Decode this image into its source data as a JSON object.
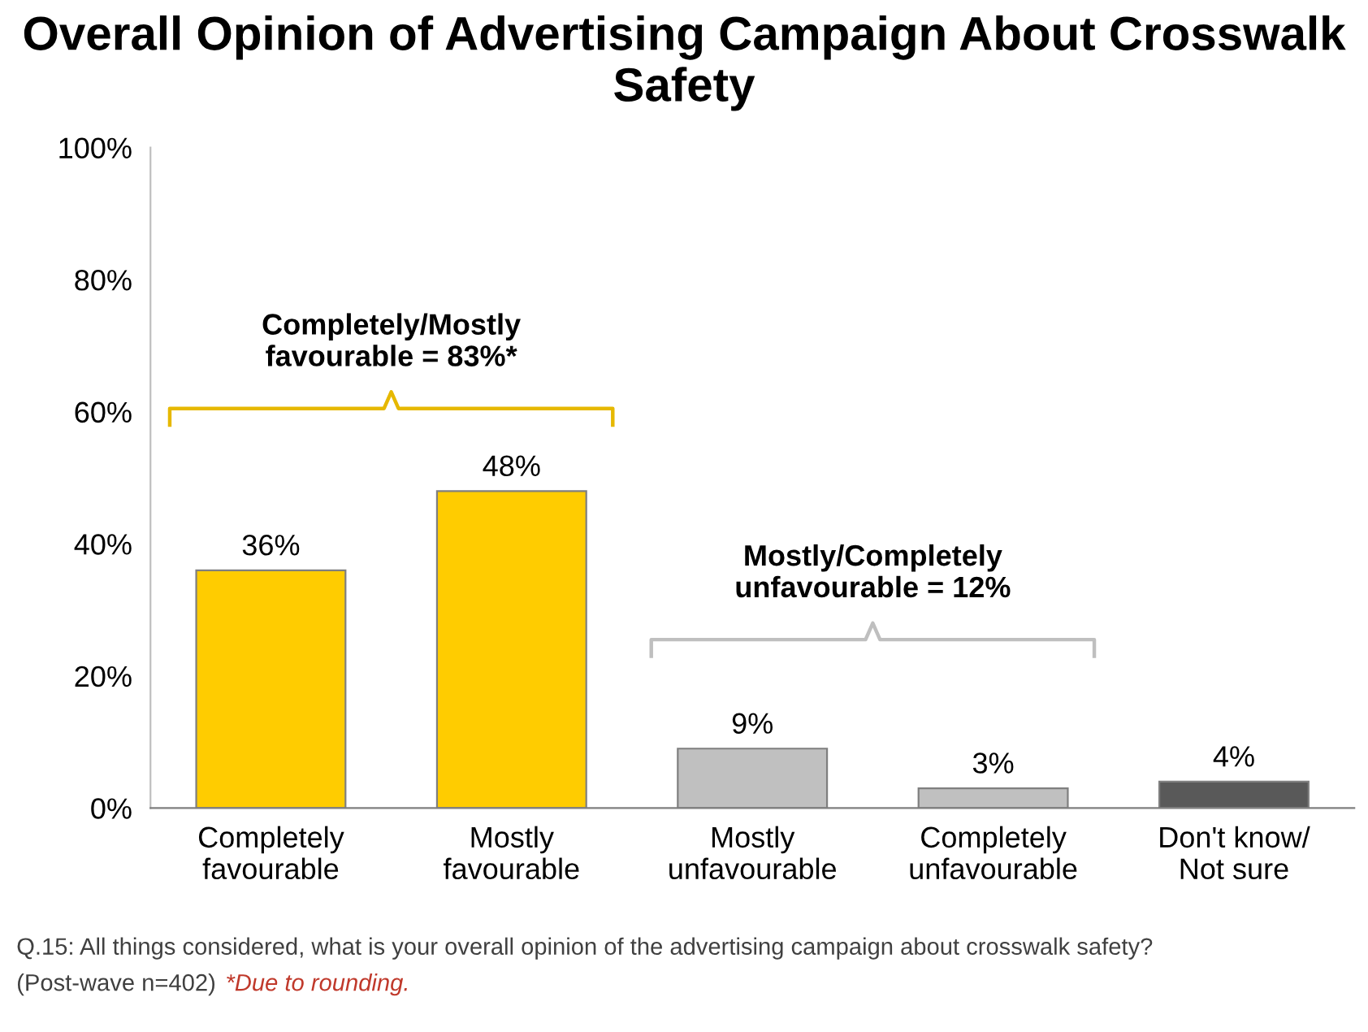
{
  "chart_data": {
    "type": "bar",
    "title": "Overall Opinion of Advertising Campaign About Crosswalk Safety",
    "categories": [
      "Completely\nfavourable",
      "Mostly\nfavourable",
      "Mostly\nunfavourable",
      "Completely\nunfavourable",
      "Don't know/\nNot sure"
    ],
    "values": [
      36,
      48,
      9,
      3,
      4
    ],
    "colors": [
      "#ffcc00",
      "#ffcc00",
      "#c0c0c0",
      "#c0c0c0",
      "#595959"
    ],
    "value_labels": [
      "36%",
      "48%",
      "9%",
      "3%",
      "4%"
    ],
    "ylim": [
      0,
      100
    ],
    "yticks": [
      {
        "value": 0,
        "label": "0%"
      },
      {
        "value": 20,
        "label": "20%"
      },
      {
        "value": 40,
        "label": "40%"
      },
      {
        "value": 60,
        "label": "60%"
      },
      {
        "value": 80,
        "label": "80%"
      },
      {
        "value": 100,
        "label": "100%"
      }
    ],
    "grid": false,
    "annotations": [
      "Completely/Mostly\nfavourable = 83%*",
      "Mostly/Completely\nunfavourable = 12%",
      "Q.15: All things considered, what is your overall opinion of the advertising campaign about crosswalk safety?",
      "(Post-wave n=402)",
      "*Due to rounding."
    ]
  }
}
